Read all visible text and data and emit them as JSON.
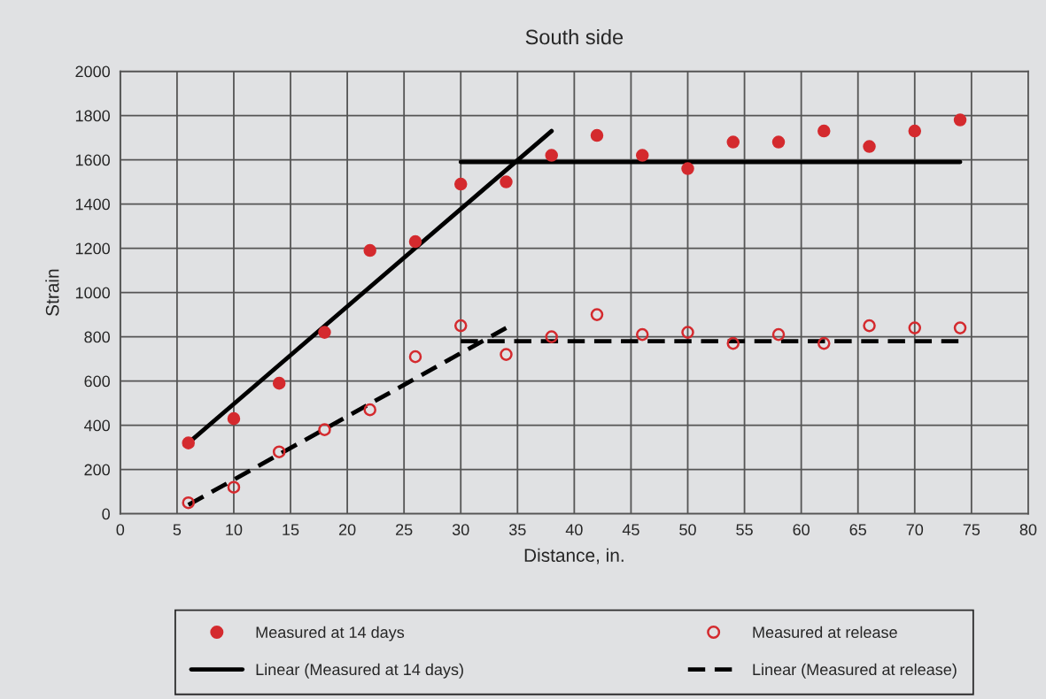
{
  "chart_data": {
    "type": "scatter",
    "title": "South side",
    "xlabel": "Distance, in.",
    "ylabel": "Strain",
    "x": [
      6,
      10,
      14,
      18,
      22,
      26,
      30,
      34,
      38,
      42,
      46,
      50,
      54,
      58,
      62,
      66,
      70,
      74
    ],
    "series": [
      {
        "name": "Measured at 14 days",
        "marker": "circle",
        "color": "#d42a2e",
        "values": [
          320,
          430,
          590,
          820,
          1190,
          1230,
          1490,
          1500,
          1620,
          1710,
          1620,
          1560,
          1680,
          1680,
          1730,
          1660,
          1730,
          1780
        ]
      },
      {
        "name": "Measured at release",
        "marker": "circle",
        "color": "#d42a2e",
        "values": [
          50,
          120,
          280,
          380,
          470,
          710,
          850,
          720,
          800,
          900,
          810,
          820,
          770,
          810,
          770,
          850,
          840,
          840
        ]
      },
      {
        "name": "Linear (Measured at 14 days)",
        "type": "line",
        "line_style": "solid",
        "color": "#000000",
        "x": [
          6,
          38
        ],
        "values": [
          320,
          1730
        ]
      },
      {
        "type": "line",
        "line_style": "solid",
        "color": "#000000",
        "x": [
          30,
          74
        ],
        "values": [
          1590,
          1590
        ]
      },
      {
        "name": "Linear (Measured at release)",
        "type": "line",
        "line_style": "dashed",
        "color": "#000000",
        "x": [
          6,
          34
        ],
        "values": [
          40,
          840
        ]
      },
      {
        "type": "line",
        "line_style": "dashed",
        "color": "#000000",
        "x": [
          30,
          74
        ],
        "values": [
          780,
          780
        ]
      }
    ],
    "xlim": [
      0,
      80
    ],
    "xticks": [
      0,
      5,
      10,
      15,
      20,
      25,
      30,
      35,
      40,
      45,
      50,
      55,
      60,
      65,
      70,
      75,
      80
    ],
    "ylim": [
      0,
      2000
    ],
    "yticks": [
      0,
      200,
      400,
      600,
      800,
      1000,
      1200,
      1400,
      1600,
      1800,
      2000
    ],
    "grid": true,
    "legend": "bottom"
  }
}
